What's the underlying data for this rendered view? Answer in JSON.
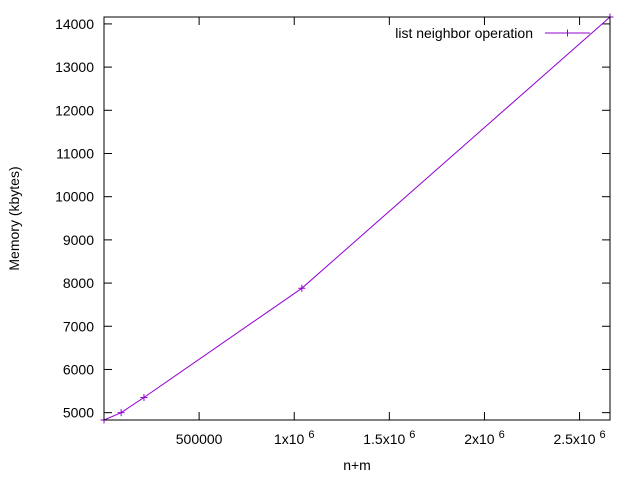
{
  "chart_data": {
    "type": "line",
    "xlabel": "n+m",
    "ylabel": "Memory (kbytes)",
    "xlim": [
      0,
      2660000
    ],
    "ylim": [
      4830,
      14160
    ],
    "x_ticks": [
      {
        "value": 500000,
        "base": "500000",
        "exp": ""
      },
      {
        "value": 1000000,
        "base": "1x10",
        "exp": "6"
      },
      {
        "value": 1500000,
        "base": "1.5x10",
        "exp": "6"
      },
      {
        "value": 2000000,
        "base": "2x10",
        "exp": "6"
      },
      {
        "value": 2500000,
        "base": "2.5x10",
        "exp": "6"
      }
    ],
    "y_ticks": [
      5000,
      6000,
      7000,
      8000,
      9000,
      10000,
      11000,
      12000,
      13000,
      14000
    ],
    "legend_position": "top-right",
    "grid": false,
    "series": [
      {
        "name": "list neighbor operation",
        "color": "#9400d3",
        "marker": "plus",
        "x": [
          0,
          90000,
          210000,
          1040000,
          2660000
        ],
        "y": [
          4830,
          5000,
          5350,
          7880,
          14160
        ]
      }
    ]
  }
}
